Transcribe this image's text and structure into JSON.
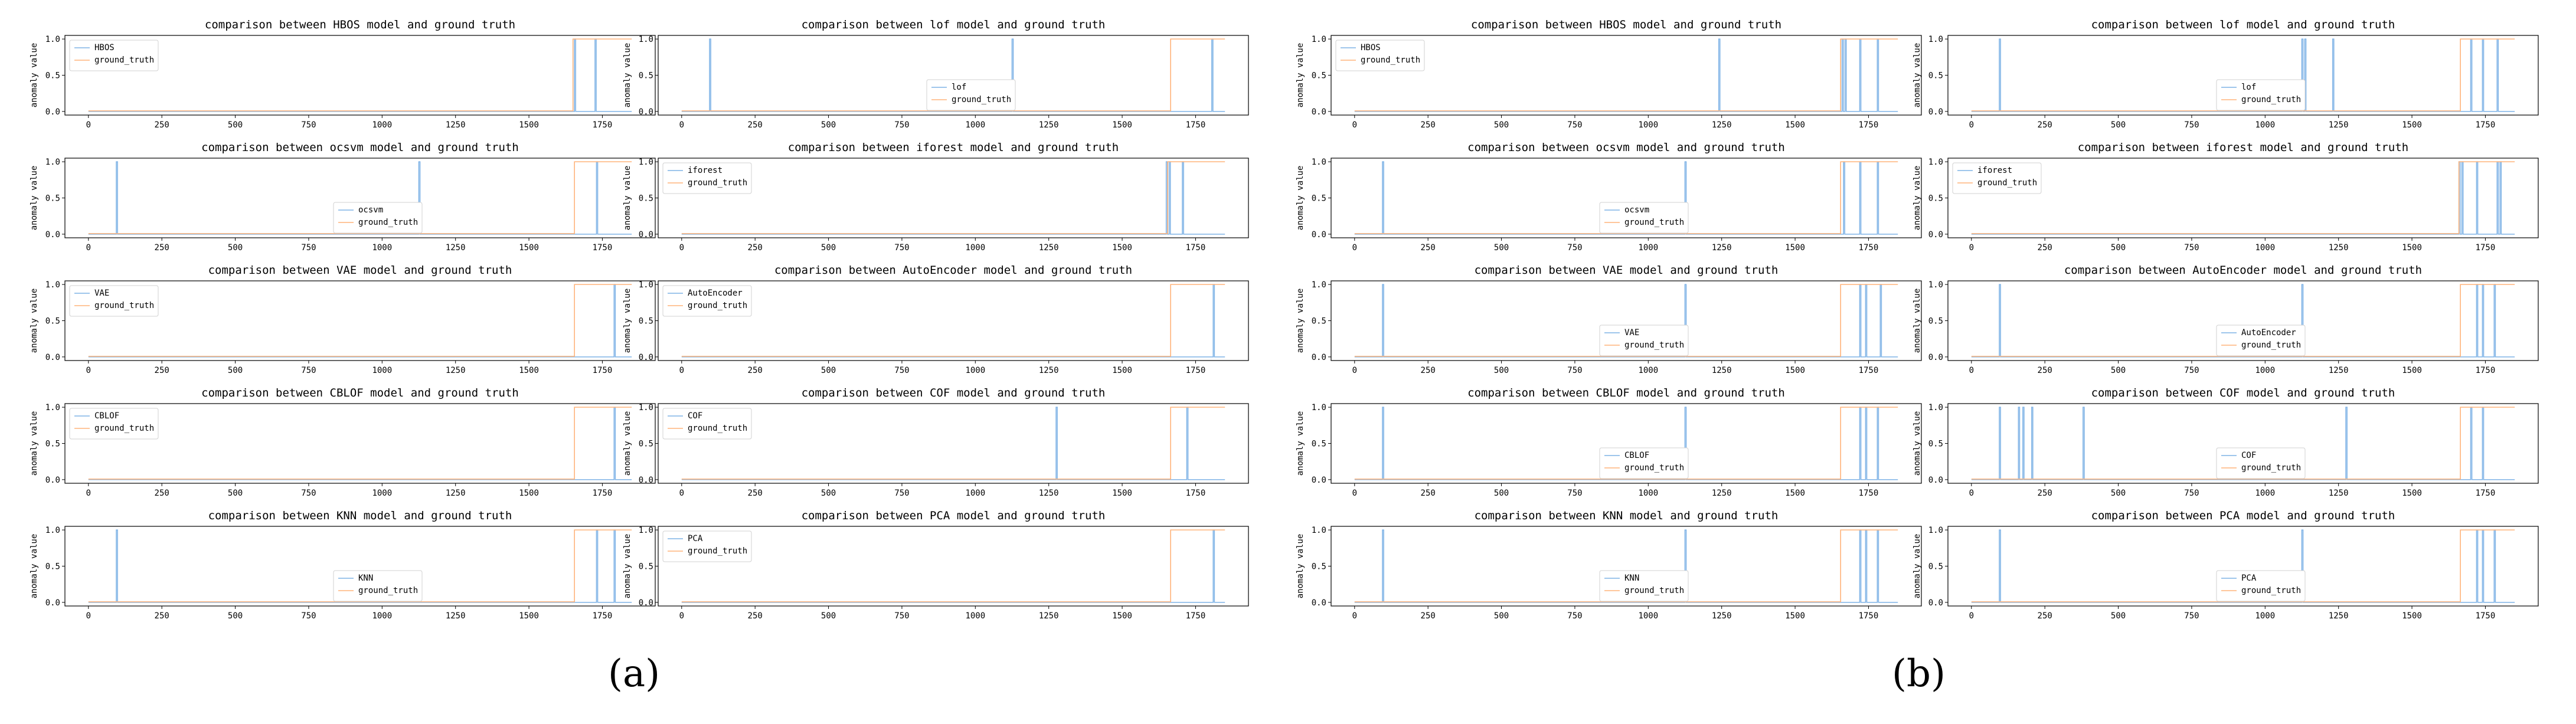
{
  "figure": {
    "panel_labels": [
      "(a)",
      "(b)"
    ],
    "ylabel": "anomaly value",
    "colors": {
      "model": "#7fb3e6",
      "ground_truth": "#ffb37a",
      "axes": "#000000"
    }
  },
  "chart_data": [
    {
      "panel": "a",
      "type": "line",
      "title": "comparison between HBOS model and ground truth",
      "ylabel": "anomaly value",
      "xlim": [
        -80,
        1930
      ],
      "ylim": [
        -0.05,
        1.05
      ],
      "xticks": [
        0,
        250,
        500,
        750,
        1000,
        1250,
        1500,
        1750
      ],
      "yticks": [
        0.0,
        0.5,
        1.0
      ],
      "legend": {
        "position": "upper-left",
        "labels": [
          "HBOS",
          "ground_truth"
        ]
      },
      "series": [
        {
          "name": "HBOS",
          "spikes": [
            1655,
            1725
          ]
        },
        {
          "name": "ground_truth",
          "segments": [
            [
              1650,
              1850
            ]
          ]
        }
      ]
    },
    {
      "panel": "a",
      "type": "line",
      "title": "comparison between lof model and ground truth",
      "ylabel": "anomaly value",
      "xlim": [
        -80,
        1930
      ],
      "ylim": [
        -0.05,
        1.05
      ],
      "xticks": [
        0,
        250,
        500,
        750,
        1000,
        1250,
        1500,
        1750
      ],
      "yticks": [
        0.0,
        0.5,
        1.0
      ],
      "legend": {
        "position": "lower-center",
        "labels": [
          "lof",
          "ground_truth"
        ]
      },
      "series": [
        {
          "name": "lof",
          "spikes": [
            95,
            1125,
            1805
          ]
        },
        {
          "name": "ground_truth",
          "segments": [
            [
              1665,
              1850
            ]
          ]
        }
      ]
    },
    {
      "panel": "a",
      "type": "line",
      "title": "comparison between ocsvm model and ground truth",
      "ylabel": "anomaly value",
      "xlim": [
        -80,
        1930
      ],
      "ylim": [
        -0.05,
        1.05
      ],
      "xticks": [
        0,
        250,
        500,
        750,
        1000,
        1250,
        1500,
        1750
      ],
      "yticks": [
        0.0,
        0.5,
        1.0
      ],
      "legend": {
        "position": "lower-center",
        "labels": [
          "ocsvm",
          "ground_truth"
        ]
      },
      "series": [
        {
          "name": "ocsvm",
          "spikes": [
            95,
            1125,
            1730
          ]
        },
        {
          "name": "ground_truth",
          "segments": [
            [
              1655,
              1850
            ]
          ]
        }
      ]
    },
    {
      "panel": "a",
      "type": "line",
      "title": "comparison between iforest model and ground truth",
      "ylabel": "anomaly value",
      "xlim": [
        -80,
        1930
      ],
      "ylim": [
        -0.05,
        1.05
      ],
      "xticks": [
        0,
        250,
        500,
        750,
        1000,
        1250,
        1500,
        1750
      ],
      "yticks": [
        0.0,
        0.5,
        1.0
      ],
      "legend": {
        "position": "upper-left",
        "labels": [
          "iforest",
          "ground_truth"
        ]
      },
      "series": [
        {
          "name": "iforest",
          "spikes": [
            1650,
            1660,
            1705
          ]
        },
        {
          "name": "ground_truth",
          "segments": [
            [
              1655,
              1850
            ]
          ]
        }
      ]
    },
    {
      "panel": "a",
      "type": "line",
      "title": "comparison between VAE model and ground truth",
      "ylabel": "anomaly value",
      "xlim": [
        -80,
        1930
      ],
      "ylim": [
        -0.05,
        1.05
      ],
      "xticks": [
        0,
        250,
        500,
        750,
        1000,
        1250,
        1500,
        1750
      ],
      "yticks": [
        0.0,
        0.5,
        1.0
      ],
      "legend": {
        "position": "upper-left",
        "labels": [
          "VAE",
          "ground_truth"
        ]
      },
      "series": [
        {
          "name": "VAE",
          "spikes": [
            1790
          ]
        },
        {
          "name": "ground_truth",
          "segments": [
            [
              1655,
              1850
            ]
          ]
        }
      ]
    },
    {
      "panel": "a",
      "type": "line",
      "title": "comparison between AutoEncoder model and ground truth",
      "ylabel": "anomaly value",
      "xlim": [
        -80,
        1930
      ],
      "ylim": [
        -0.05,
        1.05
      ],
      "xticks": [
        0,
        250,
        500,
        750,
        1000,
        1250,
        1500,
        1750
      ],
      "yticks": [
        0.0,
        0.5,
        1.0
      ],
      "legend": {
        "position": "upper-left",
        "labels": [
          "AutoEncoder",
          "ground_truth"
        ]
      },
      "series": [
        {
          "name": "AutoEncoder",
          "spikes": [
            1810
          ]
        },
        {
          "name": "ground_truth",
          "segments": [
            [
              1665,
              1850
            ]
          ]
        }
      ]
    },
    {
      "panel": "a",
      "type": "line",
      "title": "comparison between CBLOF model and ground truth",
      "ylabel": "anomaly value",
      "xlim": [
        -80,
        1930
      ],
      "ylim": [
        -0.05,
        1.05
      ],
      "xticks": [
        0,
        250,
        500,
        750,
        1000,
        1250,
        1500,
        1750
      ],
      "yticks": [
        0.0,
        0.5,
        1.0
      ],
      "legend": {
        "position": "upper-left",
        "labels": [
          "CBLOF",
          "ground_truth"
        ]
      },
      "series": [
        {
          "name": "CBLOF",
          "spikes": [
            1790
          ]
        },
        {
          "name": "ground_truth",
          "segments": [
            [
              1655,
              1850
            ]
          ]
        }
      ]
    },
    {
      "panel": "a",
      "type": "line",
      "title": "comparison between COF model and ground truth",
      "ylabel": "anomaly value",
      "xlim": [
        -80,
        1930
      ],
      "ylim": [
        -0.05,
        1.05
      ],
      "xticks": [
        0,
        250,
        500,
        750,
        1000,
        1250,
        1500,
        1750
      ],
      "yticks": [
        0.0,
        0.5,
        1.0
      ],
      "legend": {
        "position": "upper-left",
        "labels": [
          "COF",
          "ground_truth"
        ]
      },
      "series": [
        {
          "name": "COF",
          "spikes": [
            1275,
            1720
          ]
        },
        {
          "name": "ground_truth",
          "segments": [
            [
              1665,
              1850
            ]
          ]
        }
      ]
    },
    {
      "panel": "a",
      "type": "line",
      "title": "comparison between KNN model and ground truth",
      "ylabel": "anomaly value",
      "xlim": [
        -80,
        1930
      ],
      "ylim": [
        -0.05,
        1.05
      ],
      "xticks": [
        0,
        250,
        500,
        750,
        1000,
        1250,
        1500,
        1750
      ],
      "yticks": [
        0.0,
        0.5,
        1.0
      ],
      "legend": {
        "position": "lower-center",
        "labels": [
          "KNN",
          "ground_truth"
        ]
      },
      "series": [
        {
          "name": "KNN",
          "spikes": [
            95,
            1730,
            1790
          ]
        },
        {
          "name": "ground_truth",
          "segments": [
            [
              1655,
              1850
            ]
          ]
        }
      ]
    },
    {
      "panel": "a",
      "type": "line",
      "title": "comparison between PCA model and ground truth",
      "ylabel": "anomaly value",
      "xlim": [
        -80,
        1930
      ],
      "ylim": [
        -0.05,
        1.05
      ],
      "xticks": [
        0,
        250,
        500,
        750,
        1000,
        1250,
        1500,
        1750
      ],
      "yticks": [
        0.0,
        0.5,
        1.0
      ],
      "legend": {
        "position": "upper-left",
        "labels": [
          "PCA",
          "ground_truth"
        ]
      },
      "series": [
        {
          "name": "PCA",
          "spikes": [
            1810
          ]
        },
        {
          "name": "ground_truth",
          "segments": [
            [
              1665,
              1850
            ]
          ]
        }
      ]
    },
    {
      "panel": "b",
      "type": "line",
      "title": "comparison between HBOS model and ground truth",
      "ylabel": "anomaly value",
      "xlim": [
        -80,
        1930
      ],
      "ylim": [
        -0.05,
        1.05
      ],
      "xticks": [
        0,
        250,
        500,
        750,
        1000,
        1250,
        1500,
        1750
      ],
      "yticks": [
        0.0,
        0.5,
        1.0
      ],
      "legend": {
        "position": "upper-left",
        "labels": [
          "HBOS",
          "ground_truth"
        ]
      },
      "series": [
        {
          "name": "HBOS",
          "spikes": [
            1240,
            1660,
            1670,
            1720,
            1780
          ]
        },
        {
          "name": "ground_truth",
          "segments": [
            [
              1655,
              1850
            ]
          ]
        }
      ]
    },
    {
      "panel": "b",
      "type": "line",
      "title": "comparison between lof model and ground truth",
      "ylabel": "anomaly value",
      "xlim": [
        -80,
        1930
      ],
      "ylim": [
        -0.05,
        1.05
      ],
      "xticks": [
        0,
        250,
        500,
        750,
        1000,
        1250,
        1500,
        1750
      ],
      "yticks": [
        0.0,
        0.5,
        1.0
      ],
      "legend": {
        "position": "lower-center",
        "labels": [
          "lof",
          "ground_truth"
        ]
      },
      "series": [
        {
          "name": "lof",
          "spikes": [
            95,
            1125,
            1135,
            1230,
            1700,
            1740,
            1790
          ]
        },
        {
          "name": "ground_truth",
          "segments": [
            [
              1665,
              1850
            ]
          ]
        }
      ]
    },
    {
      "panel": "b",
      "type": "line",
      "title": "comparison between ocsvm model and ground truth",
      "ylabel": "anomaly value",
      "xlim": [
        -80,
        1930
      ],
      "ylim": [
        -0.05,
        1.05
      ],
      "xticks": [
        0,
        250,
        500,
        750,
        1000,
        1250,
        1500,
        1750
      ],
      "yticks": [
        0.0,
        0.5,
        1.0
      ],
      "legend": {
        "position": "lower-center",
        "labels": [
          "ocsvm",
          "ground_truth"
        ]
      },
      "series": [
        {
          "name": "ocsvm",
          "spikes": [
            95,
            1125,
            1665,
            1720,
            1780
          ]
        },
        {
          "name": "ground_truth",
          "segments": [
            [
              1655,
              1850
            ]
          ]
        }
      ]
    },
    {
      "panel": "b",
      "type": "line",
      "title": "comparison between iforest model and ground truth",
      "ylabel": "anomaly value",
      "xlim": [
        -80,
        1930
      ],
      "ylim": [
        -0.05,
        1.05
      ],
      "xticks": [
        0,
        250,
        500,
        750,
        1000,
        1250,
        1500,
        1750
      ],
      "yticks": [
        0.0,
        0.5,
        1.0
      ],
      "legend": {
        "position": "upper-left",
        "labels": [
          "iforest",
          "ground_truth"
        ]
      },
      "series": [
        {
          "name": "iforest",
          "spikes": [
            1660,
            1670,
            1720,
            1790,
            1800
          ]
        },
        {
          "name": "ground_truth",
          "segments": [
            [
              1660,
              1850
            ]
          ]
        }
      ]
    },
    {
      "panel": "b",
      "type": "line",
      "title": "comparison between VAE model and ground truth",
      "ylabel": "anomaly value",
      "xlim": [
        -80,
        1930
      ],
      "ylim": [
        -0.05,
        1.05
      ],
      "xticks": [
        0,
        250,
        500,
        750,
        1000,
        1250,
        1500,
        1750
      ],
      "yticks": [
        0.0,
        0.5,
        1.0
      ],
      "legend": {
        "position": "lower-center",
        "labels": [
          "VAE",
          "ground_truth"
        ]
      },
      "series": [
        {
          "name": "VAE",
          "spikes": [
            95,
            1125,
            1720,
            1740,
            1790
          ]
        },
        {
          "name": "ground_truth",
          "segments": [
            [
              1655,
              1850
            ]
          ]
        }
      ]
    },
    {
      "panel": "b",
      "type": "line",
      "title": "comparison between AutoEncoder model and ground truth",
      "ylabel": "anomaly value",
      "xlim": [
        -80,
        1930
      ],
      "ylim": [
        -0.05,
        1.05
      ],
      "xticks": [
        0,
        250,
        500,
        750,
        1000,
        1250,
        1500,
        1750
      ],
      "yticks": [
        0.0,
        0.5,
        1.0
      ],
      "legend": {
        "position": "lower-center",
        "labels": [
          "AutoEncoder",
          "ground_truth"
        ]
      },
      "series": [
        {
          "name": "AutoEncoder",
          "spikes": [
            95,
            1125,
            1720,
            1740,
            1780
          ]
        },
        {
          "name": "ground_truth",
          "segments": [
            [
              1665,
              1850
            ]
          ]
        }
      ]
    },
    {
      "panel": "b",
      "type": "line",
      "title": "comparison between CBLOF model and ground truth",
      "ylabel": "anomaly value",
      "xlim": [
        -80,
        1930
      ],
      "ylim": [
        -0.05,
        1.05
      ],
      "xticks": [
        0,
        250,
        500,
        750,
        1000,
        1250,
        1500,
        1750
      ],
      "yticks": [
        0.0,
        0.5,
        1.0
      ],
      "legend": {
        "position": "lower-center",
        "labels": [
          "CBLOF",
          "ground_truth"
        ]
      },
      "series": [
        {
          "name": "CBLOF",
          "spikes": [
            95,
            1125,
            1720,
            1740,
            1780
          ]
        },
        {
          "name": "ground_truth",
          "segments": [
            [
              1655,
              1850
            ]
          ]
        }
      ]
    },
    {
      "panel": "b",
      "type": "line",
      "title": "comparison between COF model and ground truth",
      "ylabel": "anomaly value",
      "xlim": [
        -80,
        1930
      ],
      "ylim": [
        -0.05,
        1.05
      ],
      "xticks": [
        0,
        250,
        500,
        750,
        1000,
        1250,
        1500,
        1750
      ],
      "yticks": [
        0.0,
        0.5,
        1.0
      ],
      "legend": {
        "position": "lower-center",
        "labels": [
          "COF",
          "ground_truth"
        ]
      },
      "series": [
        {
          "name": "COF",
          "spikes": [
            95,
            160,
            175,
            205,
            380,
            1275,
            1700,
            1740
          ]
        },
        {
          "name": "ground_truth",
          "segments": [
            [
              1665,
              1850
            ]
          ]
        }
      ]
    },
    {
      "panel": "b",
      "type": "line",
      "title": "comparison between KNN model and ground truth",
      "ylabel": "anomaly value",
      "xlim": [
        -80,
        1930
      ],
      "ylim": [
        -0.05,
        1.05
      ],
      "xticks": [
        0,
        250,
        500,
        750,
        1000,
        1250,
        1500,
        1750
      ],
      "yticks": [
        0.0,
        0.5,
        1.0
      ],
      "legend": {
        "position": "lower-center",
        "labels": [
          "KNN",
          "ground_truth"
        ]
      },
      "series": [
        {
          "name": "KNN",
          "spikes": [
            95,
            1125,
            1720,
            1740,
            1780
          ]
        },
        {
          "name": "ground_truth",
          "segments": [
            [
              1655,
              1850
            ]
          ]
        }
      ]
    },
    {
      "panel": "b",
      "type": "line",
      "title": "comparison between PCA model and ground truth",
      "ylabel": "anomaly value",
      "xlim": [
        -80,
        1930
      ],
      "ylim": [
        -0.05,
        1.05
      ],
      "xticks": [
        0,
        250,
        500,
        750,
        1000,
        1250,
        1500,
        1750
      ],
      "yticks": [
        0.0,
        0.5,
        1.0
      ],
      "legend": {
        "position": "lower-center",
        "labels": [
          "PCA",
          "ground_truth"
        ]
      },
      "series": [
        {
          "name": "PCA",
          "spikes": [
            95,
            1125,
            1720,
            1740,
            1780
          ]
        },
        {
          "name": "ground_truth",
          "segments": [
            [
              1665,
              1850
            ]
          ]
        }
      ]
    }
  ]
}
